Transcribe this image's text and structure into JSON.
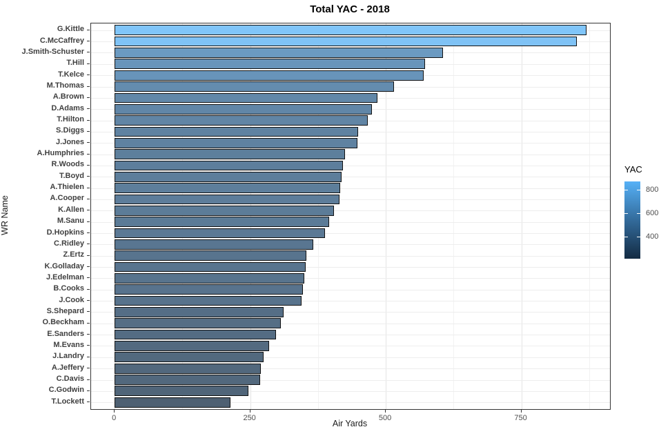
{
  "title": "Total YAC - 2018",
  "axes": {
    "x_label": "Air Yards",
    "y_label": "WR Name",
    "x_ticks": [
      0,
      250,
      500,
      750
    ],
    "x_minor_ticks": [
      125,
      375,
      625,
      875
    ]
  },
  "legend": {
    "title": "YAC",
    "ticks": [
      800,
      600,
      400
    ],
    "gradient_high": "#56B1F7",
    "gradient_mid": "#336B9B",
    "gradient_low": "#132B43"
  },
  "chart_data": {
    "type": "bar",
    "orientation": "horizontal",
    "title": "Total YAC - 2018",
    "xlabel": "Air Yards",
    "ylabel": "WR Name",
    "xlim": [
      -43.5,
      913.5
    ],
    "grid": true,
    "legend_position": "right",
    "fill_metric": "YAC",
    "fill_domain": [
      214,
      870
    ],
    "bar_alpha": 0.75,
    "bar_border": "#111111",
    "categories": [
      "G.Kittle",
      "C.McCaffrey",
      "J.Smith-Schuster",
      "T.Hill",
      "T.Kelce",
      "M.Thomas",
      "A.Brown",
      "D.Adams",
      "T.Hilton",
      "S.Diggs",
      "J.Jones",
      "A.Humphries",
      "R.Woods",
      "T.Boyd",
      "A.Thielen",
      "A.Cooper",
      "K.Allen",
      "M.Sanu",
      "D.Hopkins",
      "C.Ridley",
      "Z.Ertz",
      "K.Golladay",
      "J.Edelman",
      "B.Cooks",
      "J.Cook",
      "S.Shepard",
      "O.Beckham",
      "E.Sanders",
      "M.Evans",
      "J.Landry",
      "A.Jeffery",
      "C.Davis",
      "C.Godwin",
      "T.Lockett"
    ],
    "values": [
      870,
      852,
      605,
      573,
      570,
      515,
      485,
      475,
      467,
      449,
      448,
      425,
      421,
      419,
      416,
      415,
      405,
      396,
      388,
      366,
      354,
      352,
      350,
      347,
      345,
      311,
      307,
      297,
      285,
      275,
      270,
      268,
      247,
      214
    ]
  }
}
